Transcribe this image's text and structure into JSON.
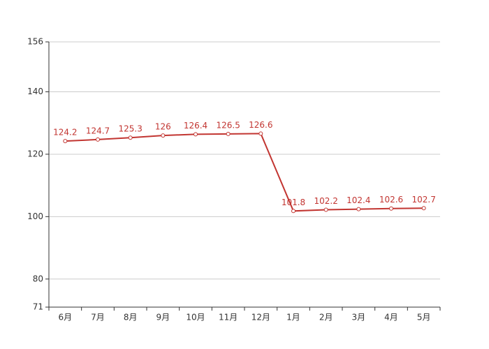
{
  "chart_data": {
    "type": "line",
    "categories": [
      "6月",
      "7月",
      "8月",
      "9月",
      "10月",
      "11月",
      "12月",
      "1月",
      "2月",
      "3月",
      "4月",
      "5月"
    ],
    "values": [
      124.2,
      124.7,
      125.3,
      126,
      126.4,
      126.5,
      126.6,
      101.8,
      102.2,
      102.4,
      102.6,
      102.7
    ],
    "color": "#c23531",
    "ylim": [
      71,
      156
    ],
    "yticks": [
      71,
      80,
      100,
      120,
      140,
      156
    ],
    "grid": true
  }
}
